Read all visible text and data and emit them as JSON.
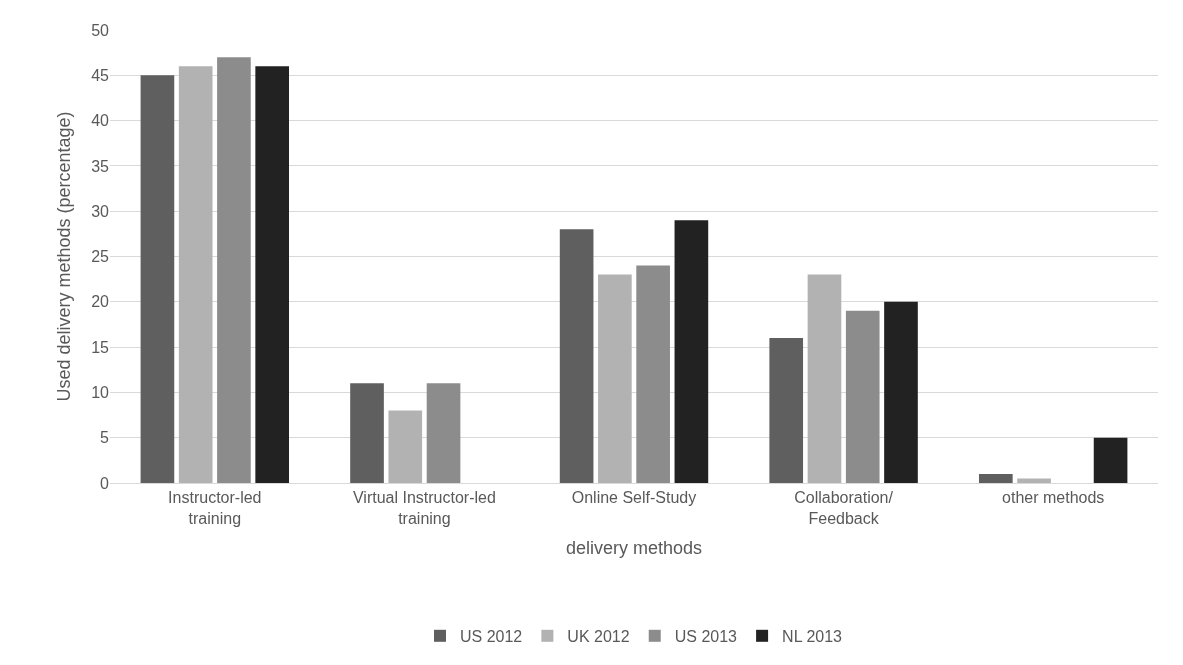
{
  "chart_data": {
    "type": "bar",
    "xlabel": "delivery methods",
    "ylabel": "Used delivery methods (percentage)",
    "categories": [
      "Instructor-led\ntraining",
      "Virtual Instructor-led\ntraining",
      "Online Self-Study",
      "Collaboration/\nFeedback",
      "other methods"
    ],
    "series": [
      {
        "name": "US 2012",
        "color": "#5f5f5f",
        "values": [
          45,
          11,
          28,
          16,
          1
        ]
      },
      {
        "name": "UK 2012",
        "color": "#b2b2b2",
        "values": [
          46,
          8,
          23,
          23,
          0.5
        ]
      },
      {
        "name": "US 2013",
        "color": "#8c8c8c",
        "values": [
          47,
          11,
          24,
          19,
          null
        ]
      },
      {
        "name": "NL 2013",
        "color": "#222222",
        "values": [
          46,
          null,
          29,
          20,
          5
        ]
      }
    ],
    "ylim": [
      0,
      50
    ],
    "yticks": [
      0,
      5,
      10,
      15,
      20,
      25,
      30,
      35,
      40,
      45,
      50
    ],
    "grid": "y",
    "legend": "bottom"
  }
}
